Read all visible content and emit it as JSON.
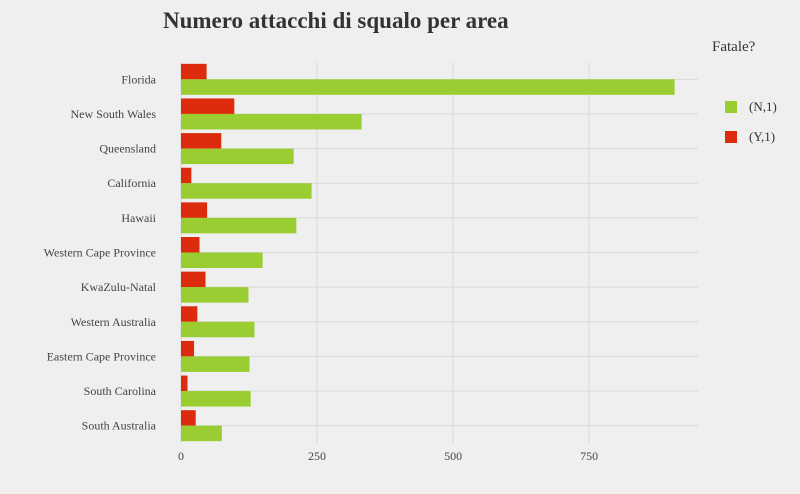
{
  "chart_data": {
    "type": "bar",
    "orientation": "horizontal",
    "title": "Numero attacchi di squalo per area",
    "xlabel": "",
    "ylabel": "",
    "xlim": [
      0,
      950
    ],
    "xticks": [
      0,
      250,
      500,
      750
    ],
    "xtick_labels": [
      "0",
      "250",
      "500",
      "750"
    ],
    "grid": true,
    "legend_title": "Fatale?",
    "legend_position": "right",
    "categories": [
      "Florida",
      "New South Wales",
      "Queensland",
      "California",
      "Hawaii",
      "Western Cape Province",
      "KwaZulu-Natal",
      "Western Australia",
      "Eastern Cape Province",
      "South Carolina",
      "South Australia"
    ],
    "series": [
      {
        "name": "(N,1)",
        "color": "#9acd32",
        "values": [
          907,
          332,
          207,
          240,
          212,
          150,
          124,
          135,
          126,
          128,
          75
        ]
      },
      {
        "name": "(Y,1)",
        "color": "#dd2c0d",
        "values": [
          47,
          98,
          74,
          19,
          48,
          34,
          45,
          30,
          24,
          12,
          27
        ]
      }
    ]
  }
}
